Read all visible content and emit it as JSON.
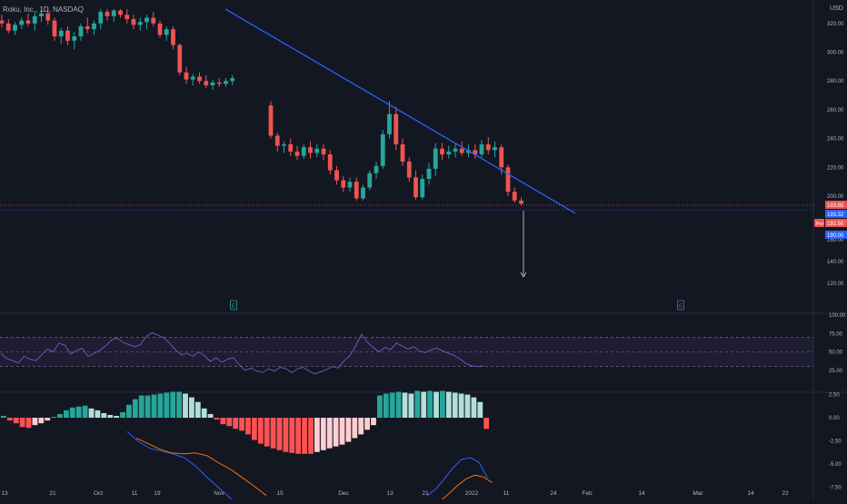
{
  "header": {
    "symbol_line": "Roku, Inc., 1D, NASDAQ",
    "currency": "USD"
  },
  "colors": {
    "background": "#131722",
    "up": "#26a69a",
    "down": "#ef5350",
    "trendline": "#2962ff",
    "rsi_line": "#7e57c2",
    "rsi_band": "#7e57c2",
    "macd_line": "#2962ff",
    "signal_line": "#ff6d00",
    "hist_up_strong": "#26a69a",
    "hist_up_weak": "#b2dfdb",
    "hist_down_strong": "#ff5252",
    "hist_down_weak": "#ffcdd2",
    "axis_text": "#b2b5be",
    "marker_price_a": "#ef5350",
    "marker_price_b": "#2962ff",
    "marker_pre": "#ef5350",
    "earnings_a": "#26a69a",
    "earnings_b": "#7e57c2"
  },
  "chart_data": [
    {
      "type": "candlestick",
      "title": "Roku, Inc., 1D, NASDAQ",
      "ylim": [
        120,
        330
      ],
      "y_ticks": [
        "320.00",
        "300.00",
        "280.00",
        "260.00",
        "240.00",
        "220.00",
        "200.00",
        "160.00",
        "140.00",
        "120.00"
      ],
      "x_tick_labels": [
        "13",
        "21",
        "Oct",
        "11",
        "19",
        "Nov",
        "15",
        "Dec",
        "13",
        "21",
        "2022",
        "11",
        "24",
        "Feb",
        "14",
        "Mar",
        "14",
        "22"
      ],
      "candles_ohlc": [
        [
          322,
          326,
          317,
          320
        ],
        [
          320,
          323,
          313,
          315
        ],
        [
          315,
          321,
          312,
          319
        ],
        [
          319,
          324,
          316,
          322
        ],
        [
          322,
          327,
          318,
          320
        ],
        [
          320,
          328,
          315,
          325
        ],
        [
          325,
          330,
          321,
          327
        ],
        [
          327,
          330,
          319,
          322
        ],
        [
          322,
          324,
          308,
          311
        ],
        [
          311,
          317,
          306,
          315
        ],
        [
          315,
          318,
          305,
          308
        ],
        [
          308,
          314,
          302,
          311
        ],
        [
          311,
          320,
          308,
          318
        ],
        [
          318,
          324,
          313,
          316
        ],
        [
          316,
          322,
          312,
          320
        ],
        [
          320,
          330,
          316,
          328
        ],
        [
          328,
          330,
          322,
          325
        ],
        [
          325,
          330,
          321,
          329
        ],
        [
          329,
          330,
          324,
          326
        ],
        [
          326,
          330,
          320,
          323
        ],
        [
          323,
          326,
          316,
          319
        ],
        [
          319,
          324,
          315,
          321
        ],
        [
          321,
          326,
          316,
          324
        ],
        [
          324,
          328,
          318,
          320
        ],
        [
          320,
          322,
          310,
          312
        ],
        [
          312,
          318,
          308,
          316
        ],
        [
          316,
          318,
          302,
          305
        ],
        [
          305,
          306,
          284,
          286
        ],
        [
          286,
          290,
          278,
          281
        ],
        [
          281,
          285,
          277,
          283
        ],
        [
          283,
          286,
          278,
          280
        ],
        [
          280,
          284,
          275,
          277
        ],
        [
          277,
          281,
          274,
          279
        ],
        [
          279,
          282,
          276,
          278
        ],
        [
          278,
          282,
          276,
          280
        ],
        [
          280,
          284,
          277,
          282
        ],
        [
          263,
          266,
          240,
          242
        ],
        [
          242,
          244,
          231,
          235
        ],
        [
          235,
          238,
          230,
          236
        ],
        [
          236,
          240,
          228,
          231
        ],
        [
          231,
          235,
          225,
          228
        ],
        [
          228,
          236,
          226,
          234
        ],
        [
          234,
          238,
          226,
          230
        ],
        [
          230,
          236,
          227,
          233
        ],
        [
          233,
          236,
          225,
          229
        ],
        [
          229,
          232,
          215,
          218
        ],
        [
          218,
          221,
          208,
          211
        ],
        [
          211,
          214,
          203,
          206
        ],
        [
          206,
          213,
          203,
          210
        ],
        [
          210,
          213,
          196,
          198
        ],
        [
          198,
          208,
          196,
          206
        ],
        [
          206,
          218,
          204,
          216
        ],
        [
          216,
          224,
          212,
          221
        ],
        [
          221,
          246,
          219,
          243
        ],
        [
          243,
          266,
          240,
          257
        ],
        [
          257,
          262,
          232,
          236
        ],
        [
          236,
          240,
          221,
          224
        ],
        [
          224,
          227,
          210,
          213
        ],
        [
          213,
          218,
          197,
          199
        ],
        [
          199,
          215,
          197,
          212
        ],
        [
          212,
          223,
          208,
          219
        ],
        [
          219,
          237,
          214,
          233
        ],
        [
          233,
          237,
          225,
          229
        ],
        [
          229,
          235,
          226,
          231
        ],
        [
          231,
          236,
          227,
          233
        ],
        [
          233,
          238,
          228,
          230
        ],
        [
          230,
          236,
          227,
          232
        ],
        [
          232,
          236,
          226,
          229
        ],
        [
          229,
          239,
          227,
          236
        ],
        [
          236,
          241,
          229,
          232
        ],
        [
          232,
          238,
          227,
          234
        ],
        [
          234,
          236,
          215,
          220
        ],
        [
          220,
          222,
          200,
          203
        ],
        [
          203,
          206,
          194,
          196
        ],
        [
          196,
          199,
          191,
          193
        ]
      ],
      "trendline": {
        "from": [
          "Sep 30",
          330
        ],
        "to": [
          "Jan 25",
          196
        ]
      },
      "price_labels": [
        "193.85",
        "193.32",
        "192.50",
        "190.00"
      ],
      "price_label_pre": "Pre",
      "earnings_markers": [
        "E",
        "E"
      ],
      "projection_arrow": {
        "from_value": 196,
        "to_value": 158
      }
    },
    {
      "type": "line",
      "title": "",
      "ylim": [
        0,
        100
      ],
      "y_ticks": [
        "100.00",
        "75.00",
        "50.00",
        "25.00"
      ],
      "band": [
        30,
        70
      ],
      "series": [
        {
          "values": [
            48,
            41,
            38,
            35,
            44,
            40,
            38,
            46,
            54,
            50,
            62,
            59,
            47,
            52,
            55,
            44,
            48,
            52,
            58,
            66,
            69,
            63,
            60,
            57,
            60,
            71,
            76,
            73,
            69,
            62,
            53,
            46,
            48,
            44,
            50,
            45,
            37,
            42,
            36,
            40,
            42,
            32,
            25,
            28,
            24,
            22,
            27,
            24,
            29,
            27,
            22,
            27,
            29,
            24,
            20,
            23,
            26,
            30,
            28,
            38,
            45,
            58,
            74,
            63,
            56,
            50,
            56,
            53,
            62,
            58,
            54,
            57,
            51,
            49,
            53,
            55,
            51,
            48,
            45,
            40,
            34,
            31,
            30,
            31
          ]
        }
      ]
    },
    {
      "type": "bar",
      "title": "",
      "ylim": [
        -10,
        4.5
      ],
      "y_ticks": [
        "2.50",
        "0.00",
        "-2.50",
        "-5.00",
        "-7.50"
      ],
      "series": [
        {
          "values": [
            0.2,
            -0.3,
            -0.6,
            -1.0,
            -1.1,
            -0.8,
            -0.6,
            -0.3,
            0.1,
            0.4,
            0.8,
            1.1,
            1.2,
            1.3,
            1.0,
            0.8,
            0.5,
            0.3,
            0.2,
            0.6,
            1.4,
            2.0,
            2.4,
            2.4,
            2.5,
            2.6,
            2.7,
            2.8,
            2.8,
            2.6,
            2.2,
            1.7,
            1.0,
            0.4,
            -0.2,
            -0.7,
            -0.9,
            -1.2,
            -1.4,
            -1.8,
            -2.4,
            -2.8,
            -3.1,
            -3.3,
            -3.5,
            -3.7,
            -3.8,
            -3.9,
            -3.9,
            -3.9,
            -3.7,
            -3.5,
            -3.3,
            -3.1,
            -2.9,
            -2.6,
            -2.2,
            -1.8,
            -1.3,
            -0.8,
            2.4,
            2.6,
            2.7,
            2.8,
            2.7,
            2.6,
            2.9,
            2.8,
            2.9,
            2.8,
            2.9,
            2.8,
            2.7,
            2.6,
            2.5,
            2.2,
            1.7,
            -1.2
          ]
        },
        {
          "values": [
            -1.5,
            -2.6,
            -3.3,
            -3.6,
            -3.9,
            -4.3,
            -5.2,
            -6.4,
            -7.5,
            -8.6,
            -9.7,
            -10.6
          ]
        },
        {
          "values": [
            -2.2,
            -2.8,
            -3.4,
            -3.8,
            -3.9,
            -3.8,
            -4.1,
            -4.9,
            -5.6,
            -6.5,
            -7.4,
            -8.4
          ]
        },
        {
          "values": [
            -8.4,
            -7.7,
            -6.6,
            -5.4,
            -4.5,
            -4.3,
            -4.8,
            -6.5
          ]
        },
        {
          "values": [
            -9.5,
            -9.0,
            -8.2,
            -7.3,
            -6.6,
            -6.2,
            -6.4,
            -7.0
          ]
        }
      ]
    }
  ]
}
